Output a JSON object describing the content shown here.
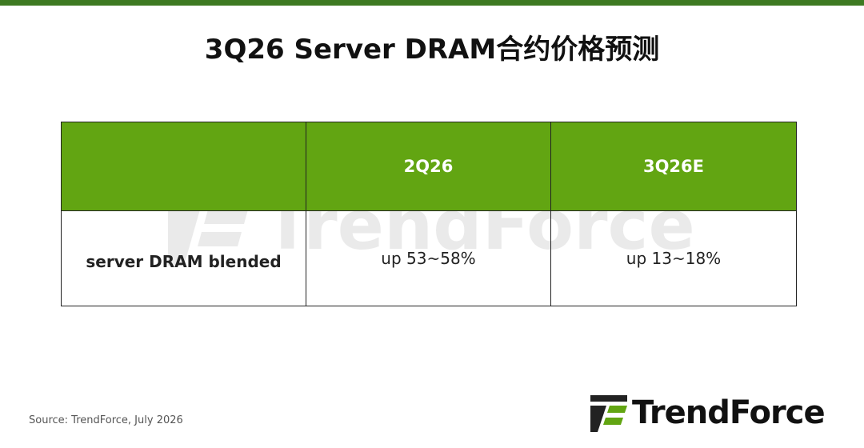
{
  "header": {
    "title": "3Q26 Server DRAM合约价格预测"
  },
  "table": {
    "columns": [
      "2Q26",
      "3Q26E"
    ],
    "rows": [
      {
        "label": "server DRAM blended",
        "cells": [
          "up 53~58%",
          "up 13~18%"
        ]
      }
    ]
  },
  "footer": {
    "source": "Source: TrendForce, July 2026"
  },
  "logo": {
    "text": "TrendForce"
  }
}
